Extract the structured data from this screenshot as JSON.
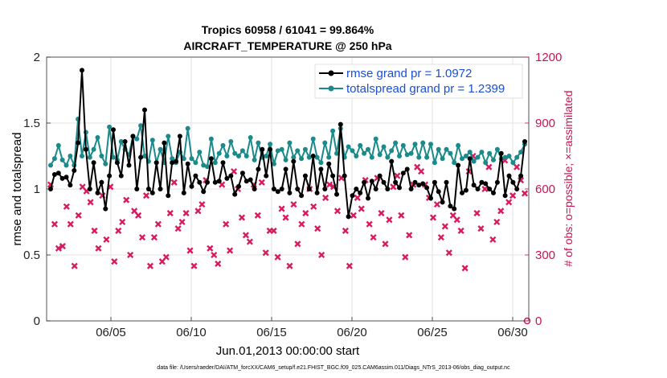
{
  "chart_data": {
    "type": "line",
    "title": "Tropics 60958 / 61041 = 99.864%",
    "subtitle": "AIRCRAFT_TEMPERATURE @ 250 hPa",
    "xlabel": "Jun.01,2013 00:00:00 start",
    "ylabel": "rmse and totalspread",
    "ylabel_right": "# of obs: o=possible; ×=assimilated",
    "footer": "data file: /Users/raeder/DAI/ATM_forcXX/CAM6_setup/f.e21.FHIST_BGC.f09_025.CAM6assim.011/Diags_NTrS_2013-06/obs_diag_output.nc",
    "x_ticks": [
      5,
      10,
      15,
      20,
      25,
      30
    ],
    "x_tick_labels": [
      "06/05",
      "06/10",
      "06/15",
      "06/20",
      "06/25",
      "06/30"
    ],
    "xlim": [
      1,
      31
    ],
    "ylim": [
      0,
      2
    ],
    "y_ticks": [
      0,
      0.5,
      1,
      1.5,
      2
    ],
    "y_tick_labels": [
      "0",
      "0.5",
      "1",
      "1.5",
      "2"
    ],
    "ylim_right": [
      0,
      1200
    ],
    "y_ticks_right": [
      0,
      300,
      600,
      900,
      1200
    ],
    "y_tick_labels_right": [
      "0",
      "300",
      "600",
      "900",
      "1200"
    ],
    "grid": true,
    "legend_position": "top-right",
    "colors": {
      "rmse": "#000000",
      "spread": "#1a8a8a",
      "obs": "#d81b60"
    },
    "series": [
      {
        "name": "rmse grand pr = 1.0972",
        "values": [
          1.0,
          1.11,
          1.12,
          1.08,
          1.09,
          1.03,
          1.14,
          1.35,
          1.9,
          1.3,
          1.0,
          1.2,
          0.97,
          1.05,
          0.85,
          1.1,
          1.45,
          1.2,
          1.1,
          1.36,
          1.18,
          1.4,
          1.0,
          1.24,
          1.6,
          1.0,
          0.97,
          1.2,
          1.0,
          1.35,
          0.95,
          1.2,
          1.21,
          1.4,
          0.97,
          1.19,
          1.02,
          1.1,
          1.05,
          0.98,
          1.05,
          1.23,
          1.05,
          1.06,
          1.2,
          1.08,
          1.1,
          0.96,
          1.02,
          1.12,
          1.06,
          1.07,
          1.0,
          1.15,
          1.3,
          1.1,
          1.3,
          1.0,
          0.98,
          1.0,
          1.15,
          0.97,
          1.21,
          1.0,
          0.95,
          1.1,
          1.0,
          1.25,
          0.97,
          1.15,
          1.0,
          1.19,
          1.1,
          0.96,
          1.49,
          1.1,
          0.79,
          0.95,
          1.0,
          0.97,
          1.05,
          0.93,
          1.06,
          1.0,
          1.1,
          1.05,
          1.0,
          1.21,
          1.05,
          1.01,
          1.12,
          1.15,
          1.0,
          1.05,
          1.03,
          1.04,
          1.01,
          0.93,
          1.05,
          0.98,
          0.9,
          1.05,
          0.87,
          0.85,
          1.18,
          0.97,
          0.99,
          1.23,
          1.03,
          1.0,
          1.05,
          1.04,
          1.0,
          0.97,
          1.05,
          1.27,
          0.95,
          1.1,
          1.05,
          1.0,
          1.1,
          1.36
        ]
      },
      {
        "name": "totalspread grand pr = 1.2399",
        "values": [
          1.18,
          1.23,
          1.33,
          1.22,
          1.18,
          1.25,
          1.18,
          1.53,
          1.25,
          1.43,
          1.24,
          1.3,
          1.39,
          1.25,
          1.19,
          1.47,
          1.24,
          1.22,
          1.36,
          1.3,
          1.26,
          1.4,
          1.38,
          1.48,
          1.25,
          1.21,
          1.37,
          1.2,
          1.3,
          1.2,
          1.4,
          1.23,
          1.2,
          1.28,
          1.23,
          1.46,
          1.23,
          1.2,
          1.28,
          1.18,
          1.17,
          1.38,
          1.2,
          1.27,
          1.33,
          1.25,
          1.36,
          1.27,
          1.25,
          1.29,
          1.25,
          1.39,
          1.22,
          1.35,
          1.24,
          1.25,
          1.34,
          1.19,
          1.29,
          1.3,
          1.22,
          1.35,
          1.24,
          1.29,
          1.23,
          1.3,
          1.24,
          1.38,
          1.24,
          1.2,
          1.35,
          1.24,
          1.44,
          1.27,
          1.46,
          1.24,
          1.32,
          1.29,
          1.25,
          1.33,
          1.27,
          1.3,
          1.24,
          1.38,
          1.26,
          1.32,
          1.24,
          1.29,
          1.35,
          1.25,
          1.33,
          1.26,
          1.27,
          1.34,
          1.24,
          1.35,
          1.24,
          1.34,
          1.2,
          1.3,
          1.23,
          1.3,
          1.27,
          1.2,
          1.33,
          1.23,
          1.25,
          1.28,
          1.21,
          1.24,
          1.28,
          1.2,
          1.27,
          1.22,
          1.3,
          1.23,
          1.24,
          1.25,
          1.2,
          1.24,
          1.28,
          1.34
        ]
      },
      {
        "name": "# of obs (assimilated)",
        "axis": "right",
        "marker": "x",
        "values": [
          620,
          440,
          330,
          340,
          520,
          440,
          250,
          480,
          610,
          590,
          540,
          410,
          330,
          570,
          370,
          610,
          270,
          410,
          450,
          550,
          300,
          500,
          480,
          380,
          570,
          250,
          380,
          440,
          270,
          290,
          490,
          630,
          420,
          450,
          490,
          320,
          250,
          500,
          530,
          640,
          330,
          300,
          260,
          620,
          440,
          320,
          680,
          600,
          470,
          390,
          360,
          620,
          480,
          630,
          310,
          410,
          410,
          290,
          510,
          470,
          250,
          530,
          350,
          440,
          490,
          600,
          520,
          420,
          300,
          560,
          620,
          610,
          500,
          650,
          410,
          250,
          480,
          560,
          510,
          640,
          440,
          380,
          650,
          490,
          350,
          460,
          610,
          660,
          480,
          290,
          390,
          620,
          700,
          680,
          620,
          560,
          470,
          530,
          380,
          430,
          310,
          480,
          460,
          410,
          240,
          680,
          750,
          490,
          420,
          600,
          700,
          370,
          450,
          500,
          730,
          540,
          570,
          700,
          640,
          580
        ]
      }
    ]
  }
}
